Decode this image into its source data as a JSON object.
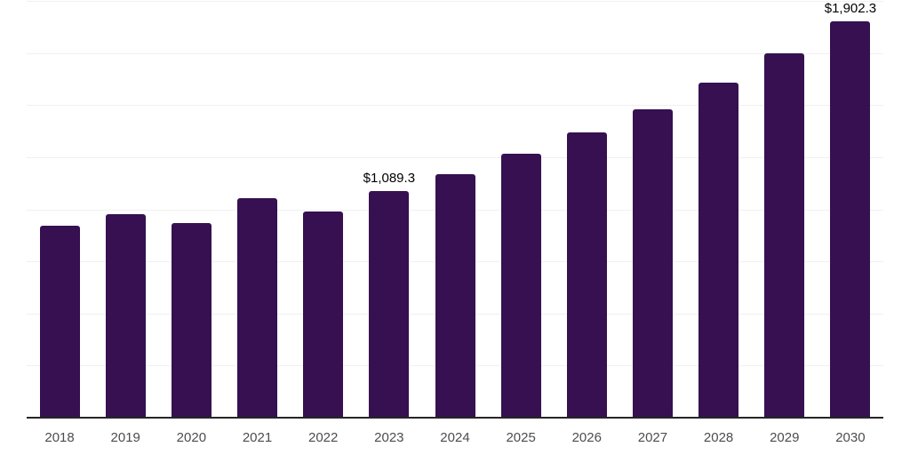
{
  "chart_data": {
    "type": "bar",
    "title": "",
    "xlabel": "",
    "ylabel": "",
    "categories": [
      "2018",
      "2019",
      "2020",
      "2021",
      "2022",
      "2023",
      "2024",
      "2025",
      "2026",
      "2027",
      "2028",
      "2029",
      "2030"
    ],
    "values": [
      920,
      978,
      936,
      1053,
      990,
      1089.3,
      1170,
      1266,
      1368,
      1481,
      1606,
      1750,
      1902.3
    ],
    "point_labels": [
      "",
      "",
      "",
      "",
      "",
      "$1,089.3",
      "",
      "",
      "",
      "",
      "",
      "",
      "$1,902.3"
    ],
    "ylim": [
      0,
      2000
    ],
    "grid": true,
    "grid_step": 250,
    "y_axis_labels_visible": false,
    "legend": false,
    "colors": {
      "bar": "#361050",
      "gridline": "#f0f0f0",
      "axis_line": "#262626",
      "tick_label": "#4d4d4d",
      "data_label": "#000000",
      "background": "#ffffff"
    }
  }
}
